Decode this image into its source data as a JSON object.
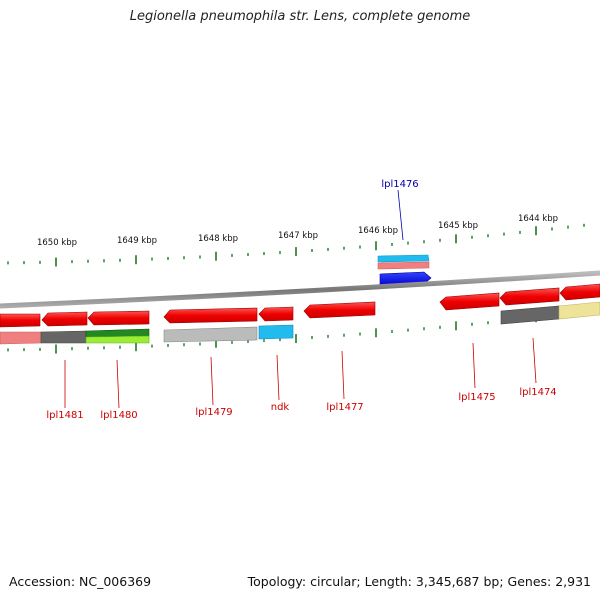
{
  "title": "Legionella pneumophila str. Lens, complete genome",
  "accession": "Accession: NC_006369",
  "summary": "Topology: circular; Length: 3,345,687 bp; Genes: 2,931",
  "ticks": [
    "1650 kbp",
    "1649 kbp",
    "1648 kbp",
    "1647 kbp",
    "1646 kbp",
    "1645 kbp",
    "1644 kbp"
  ],
  "genes": [
    {
      "name": "lpl1481",
      "color": "#cc0000"
    },
    {
      "name": "lpl1480",
      "color": "#cc0000"
    },
    {
      "name": "lpl1479",
      "color": "#cc0000"
    },
    {
      "name": "ndk",
      "color": "#cc0000"
    },
    {
      "name": "lpl1477",
      "color": "#cc0000"
    },
    {
      "name": "lpl1476",
      "color": "#0000aa"
    },
    {
      "name": "lpl1475",
      "color": "#cc0000"
    },
    {
      "name": "lpl1474",
      "color": "#cc0000"
    }
  ],
  "colors": {
    "backbone": "#888888",
    "tick": "#227722",
    "cds_forward": "#0000ee",
    "cds_reverse": "#ee0000",
    "cog_cyan": "#22bbee",
    "cog_pink": "#f08080",
    "cog_gray_dark": "#666666",
    "cog_gray_light": "#bbbbbb",
    "cog_green_dark": "#228822",
    "cog_green_light": "#99ee33",
    "cog_yellow": "#eee499"
  }
}
